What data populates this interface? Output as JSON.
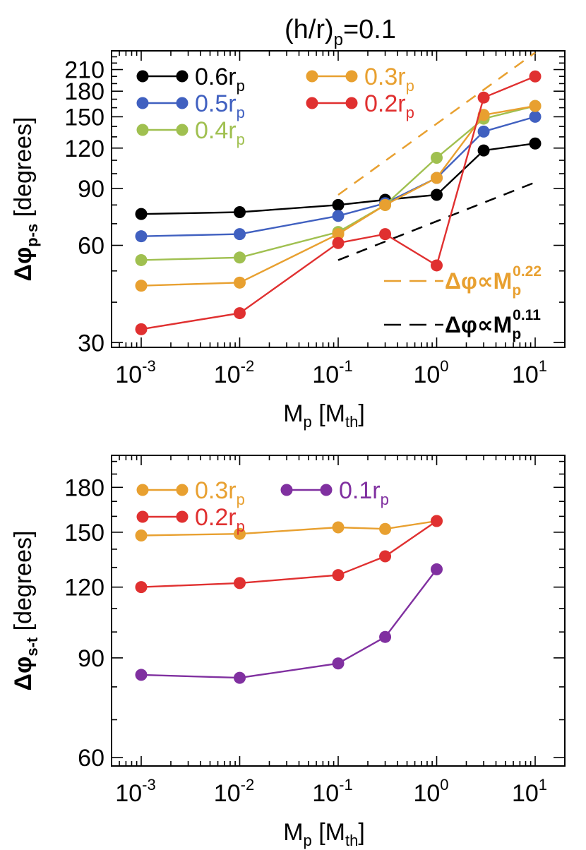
{
  "figure_title": "(h/r)",
  "figure_title_sub": "p",
  "figure_title_tail": "=0.1",
  "chart_data": [
    {
      "type": "line",
      "xscale": "log",
      "yscale": "log",
      "xlim": [
        0.0005,
        20
      ],
      "ylim": [
        29,
        240
      ],
      "x_ticks": [
        0.001,
        0.01,
        0.1,
        1,
        10
      ],
      "x_tick_labels": [
        {
          "base": "10",
          "exp": "-3"
        },
        {
          "base": "10",
          "exp": "-2"
        },
        {
          "base": "10",
          "exp": "-1"
        },
        {
          "base": "10",
          "exp": "0"
        },
        {
          "base": "10",
          "exp": "1"
        }
      ],
      "y_ticks": [
        30,
        60,
        90,
        120,
        150,
        180,
        210
      ],
      "y_tick_labels": [
        "30",
        "60",
        "90",
        "120",
        "150",
        "180",
        "210"
      ],
      "xlabel": {
        "main": "M",
        "sub": "p",
        "bracket_open": " [M",
        "bracket_sub": "th",
        "bracket_close": "]"
      },
      "ylabel": {
        "main": "Δφ",
        "sub": "p-s",
        "tail": " [degrees]"
      },
      "x": [
        0.001,
        0.01,
        0.1,
        0.3,
        1,
        3,
        10
      ],
      "series": [
        {
          "name": "0.6r",
          "name_sub": "p",
          "color": "#000000",
          "values": [
            75,
            76,
            80,
            83,
            86,
            118,
            124
          ]
        },
        {
          "name": "0.5r",
          "name_sub": "p",
          "color": "#4060c0",
          "values": [
            64,
            65,
            74,
            81,
            97,
            135,
            150
          ]
        },
        {
          "name": "0.4r",
          "name_sub": "p",
          "color": "#a0c050",
          "values": [
            54,
            55,
            66,
            80,
            112,
            148,
            162
          ]
        },
        {
          "name": "0.3r",
          "name_sub": "p",
          "color": "#e8a030",
          "values": [
            45,
            46,
            65,
            80,
            97,
            152,
            162
          ]
        },
        {
          "name": "0.2r",
          "name_sub": "p",
          "color": "#e03030",
          "values": [
            33,
            37,
            61,
            65,
            52,
            172,
            200
          ]
        }
      ],
      "legend_order": [
        0,
        3,
        1,
        4,
        2
      ],
      "fits": [
        {
          "label": "Δφ∝M",
          "label_sub": "p",
          "label_exp": "0.22",
          "color": "#e8a030",
          "x": [
            0.1,
            10
          ],
          "y": [
            86,
            237
          ]
        },
        {
          "label": "Δφ∝M",
          "label_sub": "p",
          "label_exp": "0.11",
          "color": "#000000",
          "x": [
            0.1,
            10
          ],
          "y": [
            54,
            94
          ]
        }
      ]
    },
    {
      "type": "line",
      "xscale": "log",
      "yscale": "log",
      "xlim": [
        0.0005,
        20
      ],
      "ylim": [
        58,
        205
      ],
      "x_ticks": [
        0.001,
        0.01,
        0.1,
        1,
        10
      ],
      "x_tick_labels": [
        {
          "base": "10",
          "exp": "-3"
        },
        {
          "base": "10",
          "exp": "-2"
        },
        {
          "base": "10",
          "exp": "-1"
        },
        {
          "base": "10",
          "exp": "0"
        },
        {
          "base": "10",
          "exp": "1"
        }
      ],
      "y_ticks": [
        60,
        90,
        120,
        150,
        180
      ],
      "y_tick_labels": [
        "60",
        "90",
        "120",
        "150",
        "180"
      ],
      "xlabel": {
        "main": "M",
        "sub": "p",
        "bracket_open": " [M",
        "bracket_sub": "th",
        "bracket_close": "]"
      },
      "ylabel": {
        "main": "Δφ",
        "sub": "s-t",
        "tail": " [degrees]"
      },
      "x": [
        0.001,
        0.01,
        0.1,
        0.3,
        1
      ],
      "series": [
        {
          "name": "0.3r",
          "name_sub": "p",
          "color": "#e8a030",
          "values": [
            148,
            149,
            153,
            152,
            157
          ]
        },
        {
          "name": "0.2r",
          "name_sub": "p",
          "color": "#e03030",
          "values": [
            120,
            122,
            126,
            136,
            157
          ]
        },
        {
          "name": "0.1r",
          "name_sub": "p",
          "color": "#8030a0",
          "values": [
            84,
            83,
            88,
            98,
            129
          ]
        }
      ],
      "legend_order": [
        0,
        2,
        1
      ],
      "fits": []
    }
  ]
}
